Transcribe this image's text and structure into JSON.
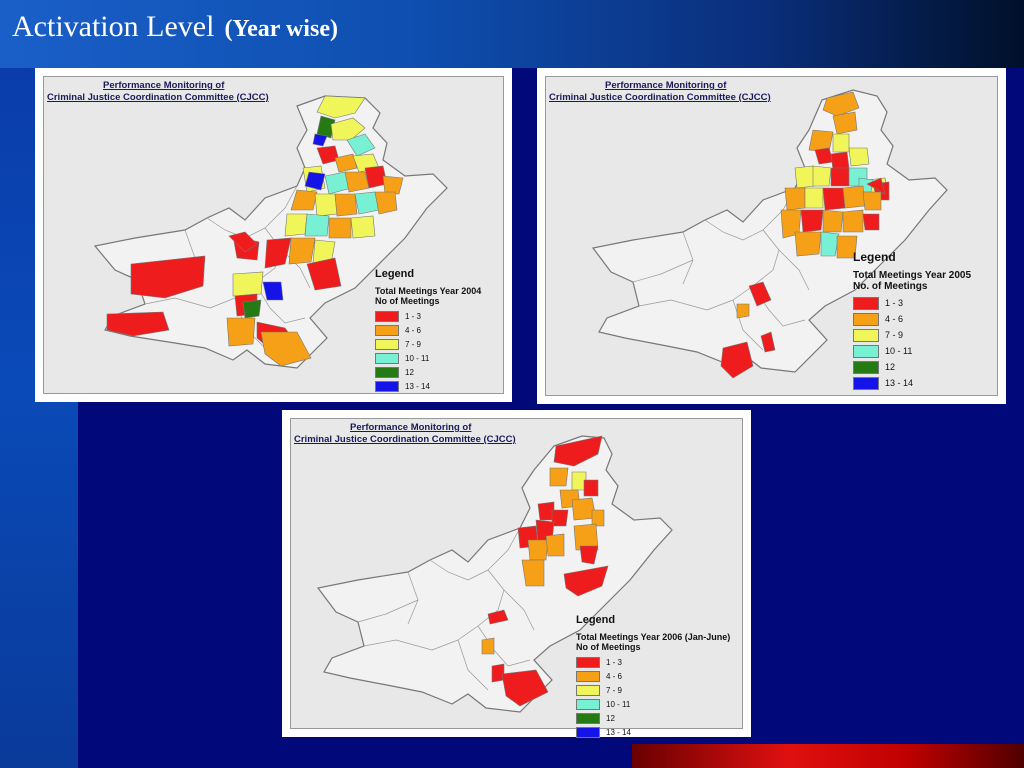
{
  "slide": {
    "title": "Activation Level",
    "subtitle": "(Year wise)"
  },
  "map_header": {
    "line1": "Performance Monitoring of",
    "line2": "Criminal Justice Coordination Committee (CJCC)"
  },
  "legend_common": {
    "title": "Legend",
    "unit": "No of Meetings",
    "unit_2005": "No. of Meetings",
    "categories": [
      {
        "label": "1 - 3",
        "color": "#ee1c1c"
      },
      {
        "label": "4 - 6",
        "color": "#f5a016"
      },
      {
        "label": "7 - 9",
        "color": "#f0f55a"
      },
      {
        "label": "10 - 11",
        "color": "#78f0d4"
      },
      {
        "label": "12",
        "color": "#267a14"
      },
      {
        "label": "13 - 14",
        "color": "#1414e8"
      }
    ]
  },
  "maps": [
    {
      "id": "2004",
      "subtitle": "Total Meetings Year 2004"
    },
    {
      "id": "2005",
      "subtitle": "Total Meetings Year 2005"
    },
    {
      "id": "2006",
      "subtitle": "Total Meetings Year 2006 (Jan-June)"
    }
  ],
  "colors": {
    "background": "#00087a",
    "map_fill": "#f2f2f2",
    "border": "#888888"
  }
}
